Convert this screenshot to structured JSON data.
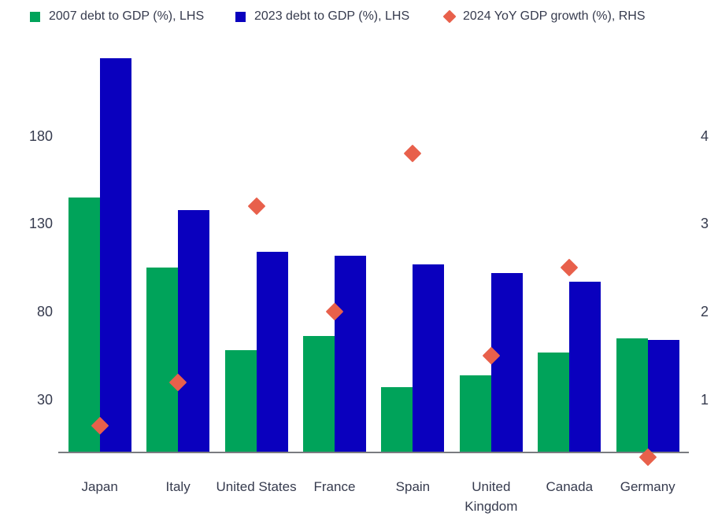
{
  "legend": {
    "items": [
      {
        "label": "2007 debt to GDP (%), LHS",
        "marker": "square",
        "color": "#00a35a"
      },
      {
        "label": "2023 debt to GDP (%), LHS",
        "marker": "square",
        "color": "#0a00be"
      },
      {
        "label": "2024 YoY GDP growth (%), RHS",
        "marker": "diamond",
        "color": "#e8604b"
      }
    ]
  },
  "colors": {
    "bar_2007": "#00a35a",
    "bar_2023": "#0a00be",
    "growth_marker": "#e8604b",
    "text": "#363b4e",
    "axis_line": "#7a7b80"
  },
  "chart_data": {
    "type": "bar",
    "subtype": "grouped bars with scatter diamonds, dual axis",
    "categories": [
      "Japan",
      "Italy",
      "United States",
      "France",
      "Spain",
      "United Kingdom",
      "Canada",
      "Germany"
    ],
    "series": [
      {
        "name": "2007 debt to GDP (%), LHS",
        "type": "bar",
        "axis": "left",
        "color": "#00a35a",
        "values": [
          145,
          105,
          58,
          66,
          37,
          44,
          57,
          65
        ]
      },
      {
        "name": "2023 debt to GDP (%), LHS",
        "type": "bar",
        "axis": "left",
        "color": "#0a00be",
        "values": [
          224,
          138,
          114,
          112,
          107,
          102,
          97,
          64
        ]
      },
      {
        "name": "2024 YoY GDP growth (%), RHS",
        "type": "scatter",
        "marker": "diamond",
        "axis": "right",
        "color": "#e8604b",
        "values": [
          0.7,
          1.2,
          3.2,
          2.0,
          3.8,
          1.5,
          2.5,
          0.35
        ]
      }
    ],
    "left_axis": {
      "ticks": [
        30,
        80,
        130,
        180
      ],
      "min": 0,
      "max": 230
    },
    "right_axis": {
      "ticks": [
        1,
        2,
        3,
        4
      ],
      "min": 0.4,
      "max": 5.0,
      "alignment": "right tick n sits at left value 50*(n-0.4)... ticks 1,2,3,4 align with 30,80,130,180"
    },
    "title": "",
    "xlabel": "",
    "ylabel": "",
    "grid": false,
    "legend_position": "top"
  }
}
